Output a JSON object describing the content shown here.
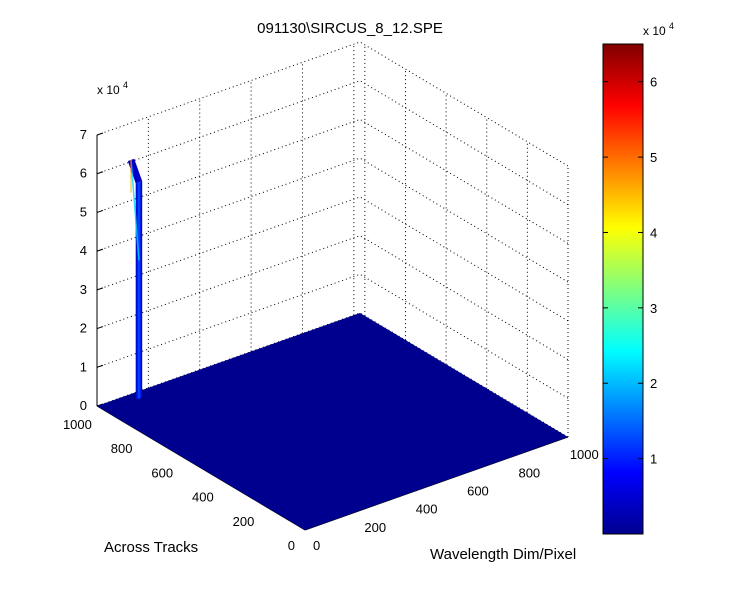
{
  "chart_data": {
    "type": "surface",
    "title": "091130\\SIRCUS_8_12.SPE",
    "xlabel": "Wavelength Dim/Pixel",
    "ylabel": "Across Tracks",
    "zlabel": "",
    "x_ticks": [
      "0",
      "200",
      "400",
      "600",
      "800",
      "1000"
    ],
    "y_ticks": [
      "0",
      "200",
      "400",
      "600",
      "800",
      "1000"
    ],
    "z_ticks": [
      "0",
      "1",
      "2",
      "3",
      "4",
      "5",
      "6",
      "7"
    ],
    "z_exponent": "x 10",
    "z_exponent_power": "4",
    "xlim": [
      0,
      1024
    ],
    "ylim": [
      0,
      1024
    ],
    "zlim": [
      0,
      70000
    ],
    "colorbar": {
      "ticks": [
        "1",
        "2",
        "3",
        "4",
        "5",
        "6"
      ],
      "exponent": "x 10",
      "exponent_power": "4",
      "range": [
        0,
        65000
      ],
      "colormap": "jet"
    },
    "baseline_value": 0,
    "peak": {
      "x_range": [
        120,
        145
      ],
      "y_range": [
        985,
        1024
      ],
      "max_value": 65000
    },
    "grid": true
  }
}
